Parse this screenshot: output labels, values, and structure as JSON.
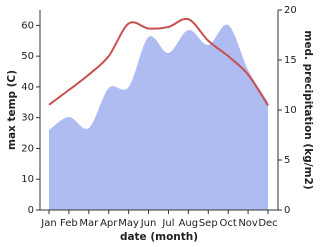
{
  "chart_data": {
    "type": "line-area",
    "categories": [
      "Jan",
      "Feb",
      "Mar",
      "Apr",
      "May",
      "Jun",
      "Jul",
      "Aug",
      "Sep",
      "Oct",
      "Nov",
      "Dec"
    ],
    "xlabel": "date (month)",
    "ylabel": "max temp (C)",
    "y2label": "med. precipitation (kg/m2)",
    "ylim": [
      0,
      65
    ],
    "yticks": [
      0,
      10,
      20,
      30,
      40,
      50,
      60
    ],
    "y2lim": [
      0,
      20
    ],
    "y2ticks": [
      0,
      5,
      10,
      15,
      20
    ],
    "series": [
      {
        "name": "med. precipitation",
        "color": "#aebcf2",
        "axis": "y2",
        "kind": "area",
        "values": [
          8,
          9.3,
          8.2,
          12.2,
          12.3,
          17.3,
          15.7,
          18,
          16.5,
          18.5,
          14,
          10.8
        ]
      },
      {
        "name": "max temp",
        "color": "#c9504e",
        "axis": "y",
        "kind": "line",
        "values": [
          34.2,
          39,
          44,
          50,
          60.6,
          59,
          59.5,
          62,
          55,
          50,
          44,
          34
        ]
      }
    ]
  }
}
